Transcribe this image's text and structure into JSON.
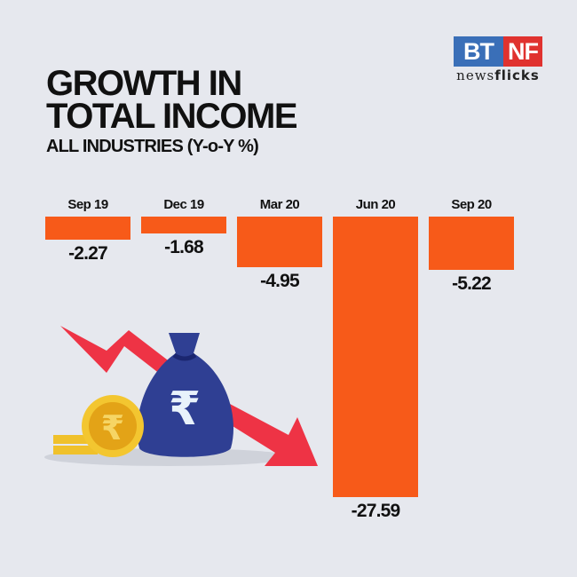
{
  "logo": {
    "left": "BT",
    "right": "NF",
    "sub_regular": "news",
    "sub_bold": "flicks"
  },
  "title_line1": "GROWTH IN",
  "title_line2": "TOTAL INCOME",
  "subtitle": "ALL INDUSTRIES (Y-o-Y %)",
  "bar_color": "#f75a19",
  "chart_data": {
    "type": "bar",
    "title": "Growth in Total Income",
    "subtitle": "All Industries (Y-o-Y %)",
    "categories": [
      "Sep 19",
      "Dec 19",
      "Mar 20",
      "Jun 20",
      "Sep 20"
    ],
    "values": [
      -2.27,
      -1.68,
      -4.95,
      -27.59,
      -5.22
    ],
    "labels": [
      "-2.27",
      "-1.68",
      "-4.95",
      "-27.59",
      "-5.22"
    ],
    "xlabel": "",
    "ylabel": "Y-o-Y %",
    "grid": false,
    "orientation": "vertical, bars hanging downward from baseline"
  }
}
